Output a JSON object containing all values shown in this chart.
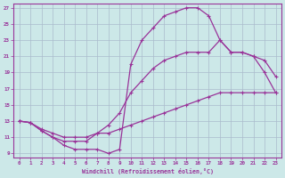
{
  "xlabel": "Windchill (Refroidissement éolien,°C)",
  "background_color": "#cce8e8",
  "grid_color": "#aabbcc",
  "line_color": "#993399",
  "xlim": [
    -0.5,
    23.5
  ],
  "ylim": [
    8.5,
    27.5
  ],
  "yticks": [
    9,
    11,
    13,
    15,
    17,
    19,
    21,
    23,
    25,
    27
  ],
  "xticks": [
    0,
    1,
    2,
    3,
    4,
    5,
    6,
    7,
    8,
    9,
    10,
    11,
    12,
    13,
    14,
    15,
    16,
    17,
    18,
    19,
    20,
    21,
    22,
    23
  ],
  "line1_x": [
    0,
    1,
    2,
    3,
    4,
    5,
    6,
    7,
    8,
    9,
    10,
    11,
    12,
    13,
    14,
    15,
    16,
    17,
    18,
    19,
    20,
    21,
    22,
    23
  ],
  "line1_y": [
    13.0,
    12.8,
    12.0,
    11.5,
    11.0,
    11.0,
    11.0,
    11.5,
    11.5,
    12.0,
    12.5,
    13.0,
    13.5,
    14.0,
    14.5,
    15.0,
    15.5,
    16.0,
    16.5,
    16.5,
    16.5,
    16.5,
    16.5,
    16.5
  ],
  "line2_x": [
    0,
    1,
    2,
    3,
    4,
    5,
    6,
    7,
    8,
    9,
    10,
    11,
    12,
    13,
    14,
    15,
    16,
    17,
    18,
    19,
    20,
    21,
    22,
    23
  ],
  "line2_y": [
    13.0,
    12.8,
    11.8,
    11.0,
    10.5,
    10.5,
    10.5,
    11.5,
    12.5,
    14.0,
    16.5,
    18.0,
    19.5,
    20.5,
    21.0,
    21.5,
    21.5,
    21.5,
    23.0,
    21.5,
    21.5,
    21.0,
    20.5,
    18.5
  ],
  "line3_x": [
    0,
    1,
    2,
    3,
    4,
    5,
    6,
    7,
    8,
    9,
    10,
    11,
    12,
    13,
    14,
    15,
    16,
    17,
    18,
    19,
    20,
    21,
    22,
    23
  ],
  "line3_y": [
    13.0,
    12.8,
    11.8,
    11.0,
    10.0,
    9.5,
    9.5,
    9.5,
    9.0,
    9.5,
    20.0,
    23.0,
    24.5,
    26.0,
    26.5,
    27.0,
    27.0,
    26.0,
    23.0,
    21.5,
    21.5,
    21.0,
    19.0,
    16.5
  ]
}
